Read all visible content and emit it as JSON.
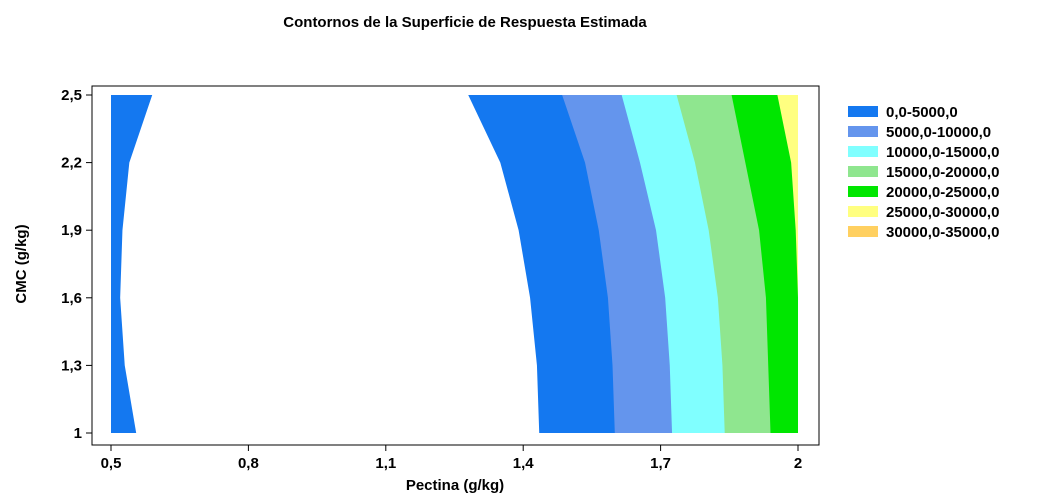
{
  "chart_data": {
    "type": "contour",
    "title": "Contornos de la Superficie de Respuesta Estimada",
    "xlabel": "Pectina (g/kg)",
    "ylabel": "CMC (g/kg)",
    "xlim": [
      0.5,
      2.0
    ],
    "ylim": [
      1.0,
      2.5
    ],
    "x_ticks": [
      "0,5",
      "0,8",
      "1,1",
      "1,4",
      "1,7",
      "2"
    ],
    "x_tick_values": [
      0.5,
      0.8,
      1.1,
      1.4,
      1.7,
      2.0
    ],
    "y_ticks": [
      "1",
      "1,3",
      "1,6",
      "1,9",
      "2,2",
      "2,5"
    ],
    "y_tick_values": [
      1.0,
      1.3,
      1.6,
      1.9,
      2.2,
      2.5
    ],
    "grid": false,
    "legend_position": "right",
    "levels": [
      {
        "label": "0,0-5000,0",
        "color": "#1478f0"
      },
      {
        "label": "5000,0-10000,0",
        "color": "#6495ed"
      },
      {
        "label": "10000,0-15000,0",
        "color": "#80ffff"
      },
      {
        "label": "15000,0-20000,0",
        "color": "#8fe68f"
      },
      {
        "label": "20000,0-25000,0",
        "color": "#00e600"
      },
      {
        "label": "25000,0-30000,0",
        "color": "#ffff80"
      },
      {
        "label": "30000,0-35000,0",
        "color": "#ffd060"
      }
    ],
    "regions": [
      {
        "level": 0,
        "side": "left",
        "right_boundary": [
          [
            2.5,
            0.59
          ],
          [
            2.2,
            0.54
          ],
          [
            1.9,
            0.525
          ],
          [
            1.6,
            0.52
          ],
          [
            1.3,
            0.53
          ],
          [
            1.0,
            0.555
          ]
        ]
      },
      {
        "level": 0,
        "left_boundary": [
          [
            2.5,
            1.28
          ],
          [
            2.2,
            1.35
          ],
          [
            1.9,
            1.39
          ],
          [
            1.6,
            1.415
          ],
          [
            1.3,
            1.43
          ],
          [
            1.0,
            1.435
          ]
        ]
      },
      {
        "level": 1,
        "left_boundary": [
          [
            2.5,
            1.485
          ],
          [
            2.2,
            1.535
          ],
          [
            1.9,
            1.565
          ],
          [
            1.6,
            1.585
          ],
          [
            1.3,
            1.595
          ],
          [
            1.0,
            1.6
          ]
        ]
      },
      {
        "level": 2,
        "left_boundary": [
          [
            2.5,
            1.615
          ],
          [
            2.2,
            1.655
          ],
          [
            1.9,
            1.69
          ],
          [
            1.6,
            1.71
          ],
          [
            1.3,
            1.72
          ],
          [
            1.0,
            1.725
          ]
        ]
      },
      {
        "level": 3,
        "left_boundary": [
          [
            2.5,
            1.735
          ],
          [
            2.2,
            1.775
          ],
          [
            1.9,
            1.805
          ],
          [
            1.6,
            1.825
          ],
          [
            1.3,
            1.835
          ],
          [
            1.0,
            1.84
          ]
        ]
      },
      {
        "level": 4,
        "left_boundary": [
          [
            2.5,
            1.855
          ],
          [
            2.2,
            1.885
          ],
          [
            1.9,
            1.915
          ],
          [
            1.6,
            1.93
          ],
          [
            1.3,
            1.935
          ],
          [
            1.0,
            1.94
          ]
        ]
      },
      {
        "level": 5,
        "left_boundary": [
          [
            2.5,
            1.955
          ],
          [
            2.2,
            1.985
          ],
          [
            1.9,
            1.995
          ],
          [
            1.6,
            2.0
          ],
          [
            1.3,
            2.0
          ],
          [
            1.0,
            2.0
          ]
        ]
      }
    ]
  }
}
